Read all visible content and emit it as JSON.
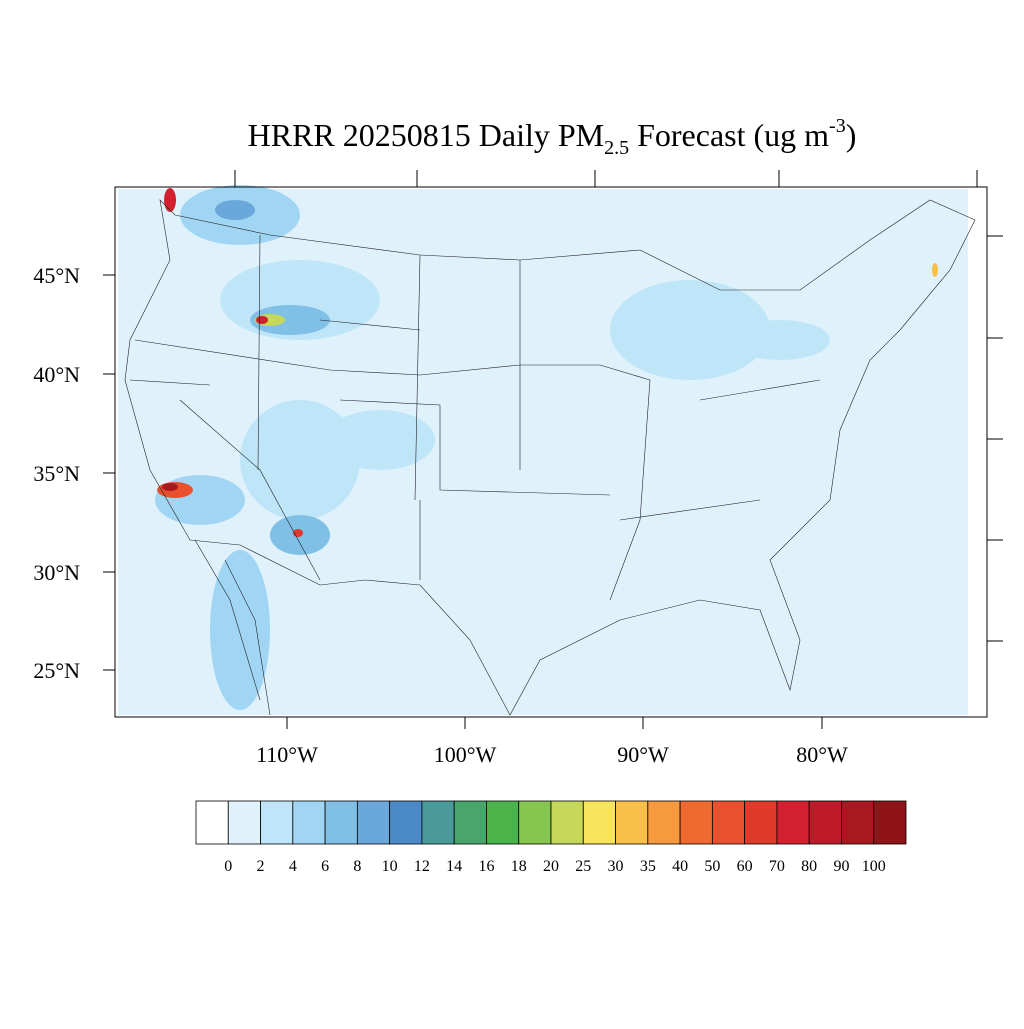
{
  "title": {
    "main": "HRRR 20250815 Daily PM",
    "sub": "2.5",
    "middle": " Forecast (ug m",
    "sup": "-3",
    "end": ")"
  },
  "map": {
    "lat_labels": [
      "45°N",
      "40°N",
      "35°N",
      "30°N",
      "25°N"
    ],
    "lon_labels": [
      "110°W",
      "100°W",
      "90°W",
      "80°W"
    ]
  },
  "colorbar": {
    "levels": [
      0,
      2,
      4,
      6,
      8,
      10,
      12,
      14,
      16,
      18,
      20,
      25,
      30,
      35,
      40,
      50,
      60,
      70,
      80,
      90,
      100
    ],
    "colors": [
      "#ffffff",
      "#dff1fb",
      "#bfe6f8",
      "#a0d6f4",
      "#80bfe6",
      "#6aa7db",
      "#4a8ac8",
      "#4a9a9a",
      "#48a66a",
      "#4ab44a",
      "#85c550",
      "#c5d85a",
      "#f8e45a",
      "#f8c048",
      "#f59a3e",
      "#f06a30",
      "#e8502e",
      "#e03a2a",
      "#d4202e",
      "#bd1b2a",
      "#a8181e",
      "#8e1418"
    ]
  }
}
